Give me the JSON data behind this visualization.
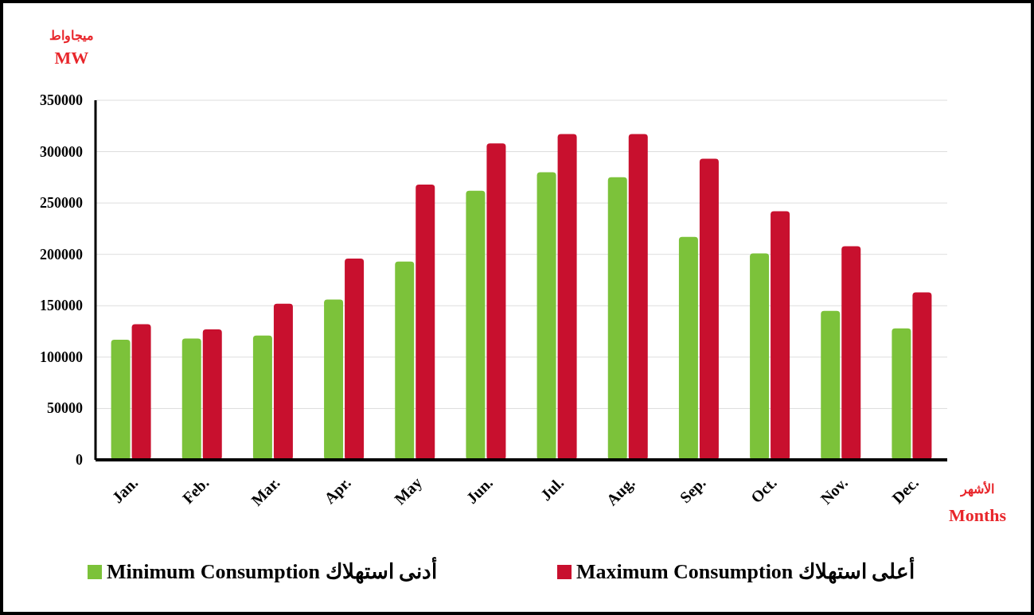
{
  "chart_data": {
    "type": "bar",
    "ylabel": "ميجاواط\nMW",
    "xlabel": "الأشهر\nMonths",
    "categories": [
      "Jan.",
      "Feb.",
      "Mar.",
      "Apr.",
      "May",
      "Jun.",
      "Jul.",
      "Aug.",
      "Sep.",
      "Oct.",
      "Nov.",
      "Dec."
    ],
    "series": [
      {
        "name": "Minimum Consumption  أدنى استهلاك",
        "color": "#7cc23a",
        "values": [
          117000,
          118000,
          121000,
          156000,
          193000,
          262000,
          280000,
          275000,
          217000,
          201000,
          145000,
          128000
        ]
      },
      {
        "name": "Maximum Consumption أعلى استهلاك",
        "color": "#c8102e",
        "values": [
          132000,
          127000,
          152000,
          196000,
          268000,
          308000,
          317000,
          317000,
          293000,
          242000,
          208000,
          163000
        ]
      }
    ],
    "ylim": [
      0,
      350000
    ],
    "yticks": [
      0,
      50000,
      100000,
      150000,
      200000,
      250000,
      300000,
      350000
    ],
    "grid": "y",
    "legend": "bottom"
  }
}
